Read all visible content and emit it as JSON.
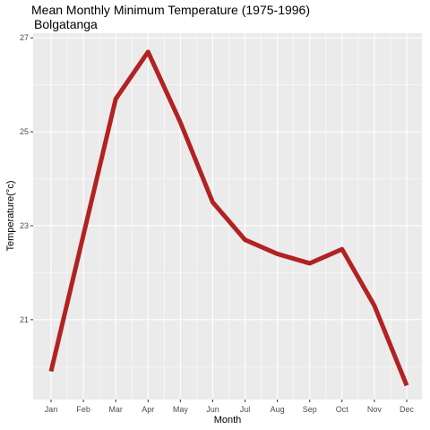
{
  "chart_data": {
    "type": "line",
    "title": "Mean Monthly Minimum Temperature (1975-1996)",
    "subtitle": "Bolgatanga",
    "xlabel": "Month",
    "ylabel": "Temperature(°c)",
    "categories": [
      "Jan",
      "Feb",
      "Mar",
      "Apr",
      "May",
      "Jun",
      "Jul",
      "Aug",
      "Sep",
      "Oct",
      "Nov",
      "Dec"
    ],
    "series": [
      {
        "values": [
          19.9,
          22.8,
          25.7,
          26.7,
          25.2,
          23.5,
          22.7,
          22.4,
          22.2,
          22.5,
          21.3,
          19.6
        ]
      }
    ],
    "yticks": [
      21,
      23,
      25,
      27
    ],
    "ylim": [
      19.3,
      27.1
    ],
    "grid": true,
    "line_color": "#b22222",
    "panel_color": "#ebebeb",
    "grid_color": "#ffffff"
  }
}
